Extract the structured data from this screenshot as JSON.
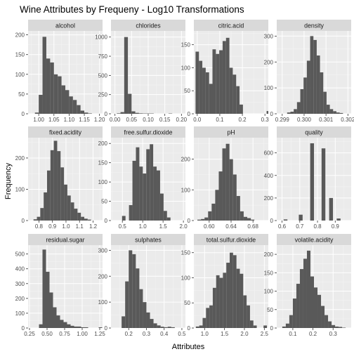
{
  "chart_data": {
    "type": "bar",
    "title": "Wine Attributes by Frequeny -  Log10 Transformations",
    "xlabel": "Attributes",
    "ylabel": "Frequency",
    "grid": true,
    "legend": "none",
    "colors": {
      "bar": "#595959",
      "panel": "#ebebeb",
      "strip": "#d9d9d9",
      "grid_major": "#ffffff"
    },
    "facets": [
      {
        "name": "alcohol",
        "xlim": [
          0.965,
          1.21
        ],
        "ylim": [
          0,
          210
        ],
        "x_ticks": [
          1.0,
          1.05,
          1.1,
          1.15,
          1.2
        ],
        "x_tick_labels": [
          "1.00",
          "1.05",
          "1.10",
          "1.15",
          "1.20"
        ],
        "y_ticks": [
          0,
          50,
          100,
          150,
          200
        ],
        "bin_start": 0.9625,
        "bin_width": 0.0125,
        "counts": [
          0,
          0,
          3,
          48,
          195,
          140,
          130,
          100,
          95,
          72,
          60,
          44,
          35,
          22,
          8,
          3,
          1,
          0,
          0
        ]
      },
      {
        "name": "chlorides",
        "xlim": [
          -0.012,
          0.212
        ],
        "ylim": [
          0,
          1080
        ],
        "x_ticks": [
          0.0,
          0.05,
          0.1,
          0.15,
          0.2
        ],
        "x_tick_labels": [
          "0.00",
          "0.05",
          "0.10",
          "0.15",
          "0.20"
        ],
        "y_ticks": [
          0,
          250,
          500,
          750,
          1000
        ],
        "bin_start": -0.00556,
        "bin_width": 0.01111,
        "counts": [
          0,
          6,
          22,
          1000,
          260,
          32,
          12,
          6,
          4,
          4,
          4,
          0,
          0,
          0,
          0,
          4,
          0,
          0,
          0,
          0
        ]
      },
      {
        "name": "citric.acid",
        "xlim": [
          -0.015,
          0.315
        ],
        "ylim": [
          0,
          180
        ],
        "x_ticks": [
          0.0,
          0.1,
          0.2,
          0.3
        ],
        "x_tick_labels": [
          "0.0",
          "0.1",
          "0.2",
          "0.3"
        ],
        "y_ticks": [
          0,
          50,
          100,
          150
        ],
        "bin_start": -0.0075,
        "bin_width": 0.015,
        "counts": [
          135,
          115,
          100,
          90,
          65,
          140,
          130,
          138,
          158,
          165,
          100,
          85,
          60,
          20,
          0,
          0,
          0,
          0,
          0,
          0,
          0,
          6
        ]
      },
      {
        "name": "density",
        "xlim": [
          0.29875,
          0.30215
        ],
        "ylim": [
          0,
          320
        ],
        "x_ticks": [
          0.299,
          0.3,
          0.301,
          0.302
        ],
        "x_tick_labels": [
          "0.299",
          "0.300",
          "0.301",
          "0.302"
        ],
        "y_ticks": [
          0,
          100,
          200,
          300
        ],
        "bin_start": 0.298925,
        "bin_width": 0.00015,
        "counts": [
          0,
          0,
          5,
          8,
          18,
          45,
          95,
          140,
          205,
          300,
          285,
          225,
          160,
          85,
          35,
          18,
          10,
          5,
          3,
          0,
          0,
          0
        ]
      },
      {
        "name": "fixed.acidity",
        "xlim": [
          0.72,
          1.27
        ],
        "ylim": [
          0,
          265
        ],
        "x_ticks": [
          0.8,
          0.9,
          1.0,
          1.1,
          1.2
        ],
        "x_tick_labels": [
          "0.8",
          "0.9",
          "1.0",
          "1.1",
          "1.2"
        ],
        "y_ticks": [
          0,
          100,
          200
        ],
        "bin_start": 0.735,
        "bin_width": 0.025,
        "counts": [
          0,
          4,
          12,
          40,
          90,
          160,
          225,
          255,
          222,
          170,
          115,
          80,
          58,
          38,
          25,
          12,
          6,
          3,
          0,
          0,
          0
        ]
      },
      {
        "name": "free.sulfur.dioxide",
        "xlim": [
          0.22,
          2.05
        ],
        "ylim": [
          0,
          215
        ],
        "x_ticks": [
          0.5,
          1.0,
          1.5,
          2.0
        ],
        "x_tick_labels": [
          "0.5",
          "1.0",
          "1.5",
          "2.0"
        ],
        "y_ticks": [
          0,
          50,
          100,
          150,
          200
        ],
        "bin_start": 0.2375,
        "bin_width": 0.085,
        "counts": [
          0,
          0,
          0,
          12,
          0,
          40,
          155,
          190,
          140,
          122,
          185,
          198,
          140,
          130,
          70,
          25,
          8,
          0,
          0,
          0,
          0
        ]
      },
      {
        "name": "pH",
        "xlim": [
          0.572,
          0.708
        ],
        "ylim": [
          0,
          270
        ],
        "x_ticks": [
          0.6,
          0.64,
          0.68
        ],
        "x_tick_labels": [
          "0.60",
          "0.64",
          "0.68"
        ],
        "y_ticks": [
          0,
          100,
          200
        ],
        "bin_start": 0.5785,
        "bin_width": 0.0065,
        "counts": [
          3,
          5,
          10,
          30,
          55,
          100,
          160,
          235,
          250,
          200,
          150,
          80,
          30,
          12,
          8,
          3,
          0,
          0,
          0,
          0,
          0
        ]
      },
      {
        "name": "quality",
        "xlim": [
          0.57,
          0.99
        ],
        "ylim": [
          0,
          735
        ],
        "x_ticks": [
          0.6,
          0.7,
          0.8,
          0.9
        ],
        "x_tick_labels": [
          "0.6",
          "0.7",
          "0.8",
          "0.9"
        ],
        "y_ticks": [
          0,
          200,
          400,
          600
        ],
        "bin_start": 0.5875,
        "bin_width": 0.0214,
        "counts": [
          0,
          10,
          0,
          0,
          0,
          52,
          0,
          0,
          685,
          0,
          0,
          640,
          0,
          200,
          0,
          18,
          0,
          0,
          0
        ]
      },
      {
        "name": "residual.sugar",
        "xlim": [
          0.23,
          1.29
        ],
        "ylim": [
          0,
          560
        ],
        "x_ticks": [
          0.25,
          0.5,
          0.75,
          1.0,
          1.25
        ],
        "x_tick_labels": [
          "0.25",
          "0.50",
          "0.75",
          "1.00",
          "1.25"
        ],
        "y_ticks": [
          0,
          100,
          200,
          300,
          400,
          500
        ],
        "bin_start": 0.285,
        "bin_width": 0.05,
        "counts": [
          0,
          0,
          25,
          530,
          380,
          240,
          140,
          85,
          55,
          40,
          25,
          15,
          10,
          10,
          5,
          5,
          0,
          0,
          0,
          5,
          0
        ]
      },
      {
        "name": "sulphates",
        "xlim": [
          0.1,
          0.52
        ],
        "ylim": [
          0,
          320
        ],
        "x_ticks": [
          0.2,
          0.3,
          0.4,
          0.5
        ],
        "x_tick_labels": [
          "0.2",
          "0.3",
          "0.4",
          "0.5"
        ],
        "y_ticks": [
          0,
          100,
          200,
          300
        ],
        "bin_start": 0.12,
        "bin_width": 0.02,
        "counts": [
          0,
          0,
          45,
          180,
          300,
          285,
          230,
          150,
          100,
          60,
          35,
          18,
          10,
          5,
          3,
          5,
          3,
          0,
          0,
          0
        ]
      },
      {
        "name": "total.sulfur.dioxide",
        "xlim": [
          0.73,
          2.6
        ],
        "ylim": [
          0,
          165
        ],
        "x_ticks": [
          1.0,
          1.5,
          2.0,
          2.5
        ],
        "x_tick_labels": [
          "1.0",
          "1.5",
          "2.0",
          "2.5"
        ],
        "y_ticks": [
          0,
          50,
          100,
          150
        ],
        "bin_start": 0.78,
        "bin_width": 0.085,
        "counts": [
          3,
          5,
          20,
          40,
          45,
          80,
          105,
          100,
          110,
          130,
          150,
          145,
          118,
          108,
          65,
          45,
          15,
          5,
          0,
          0,
          5,
          0
        ]
      },
      {
        "name": "volatile.acidity",
        "xlim": [
          0.02,
          0.39
        ],
        "ylim": [
          0,
          225
        ],
        "x_ticks": [
          0.1,
          0.2,
          0.3
        ],
        "x_tick_labels": [
          "0.1",
          "0.2",
          "0.3"
        ],
        "y_ticks": [
          0,
          50,
          100,
          150,
          200
        ],
        "bin_start": 0.03,
        "bin_width": 0.0175,
        "counts": [
          0,
          4,
          12,
          35,
          80,
          120,
          160,
          188,
          210,
          140,
          110,
          90,
          60,
          35,
          18,
          8,
          4,
          3,
          1,
          0,
          0
        ]
      }
    ]
  }
}
